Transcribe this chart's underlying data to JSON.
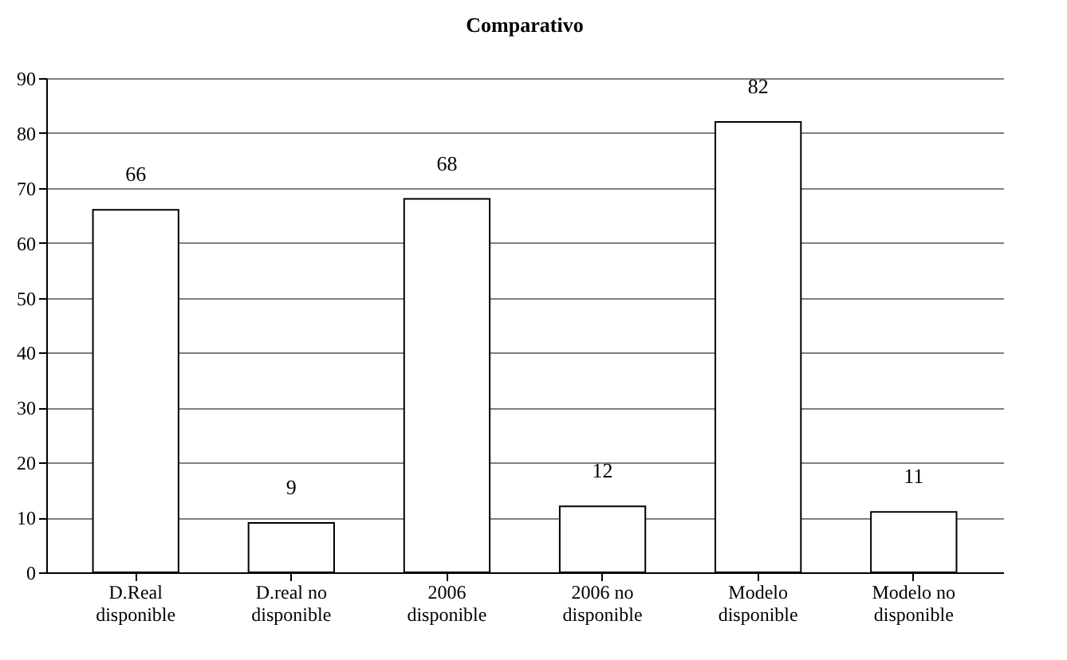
{
  "chart_data": {
    "type": "bar",
    "title": "Comparativo",
    "categories": [
      "D.Real disponible",
      "D.real no disponible",
      "2006 disponible",
      "2006 no disponible",
      "Modelo disponible",
      "Modelo no disponible"
    ],
    "values": [
      66,
      9,
      68,
      12,
      82,
      11
    ],
    "color": "#ffffff",
    "ylim": [
      0,
      90
    ],
    "yticks": [
      0,
      10,
      20,
      30,
      40,
      50,
      60,
      70,
      80,
      90
    ],
    "grid": "y",
    "data_labels": true
  }
}
